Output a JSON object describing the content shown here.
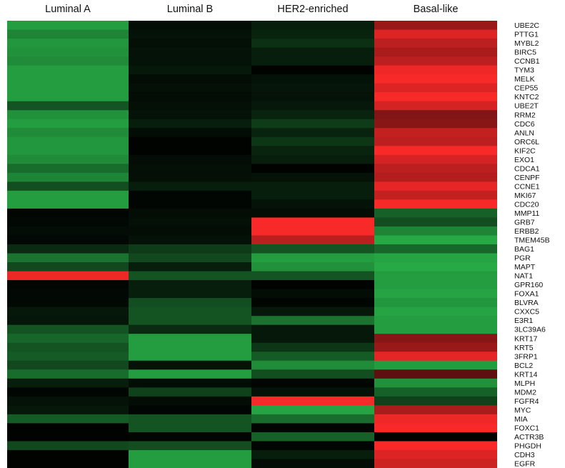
{
  "chart_data": {
    "type": "heatmap",
    "columns": [
      "Luminal A",
      "Luminal B",
      "HER2-enriched",
      "Basal-like"
    ],
    "rows": [
      "UBE2C",
      "PTTG1",
      "MYBL2",
      "BIRC5",
      "CCNB1",
      "TYM3",
      "MELK",
      "CEP55",
      "KNTC2",
      "UBE2T",
      "RRM2",
      "CDC6",
      "ANLN",
      "ORC6L",
      "KIF2C",
      "EXO1",
      "CDCA1",
      "CENPF",
      "CCNE1",
      "MKI67",
      "CDC20",
      "MMP11",
      "GRB7",
      "ERBB2",
      "TMEM45B",
      "BAG1",
      "PGR",
      "MAPT",
      "NAT1",
      "GPR160",
      "FOXA1",
      "BLVRA",
      "CXXC5",
      "E3R1",
      "3LC39A6",
      "KRT17",
      "KRT5",
      "3FRP1",
      "BCL2",
      "KRT14",
      "MLPH",
      "MDM2",
      "FGFR4",
      "MYC",
      "MIA",
      "FOXC1",
      "ACTR3B",
      "PHGDH",
      "CDH3",
      "EGFR"
    ],
    "values": [
      [
        -2.6,
        -0.2,
        -0.5,
        1.8
      ],
      [
        -2.2,
        -0.3,
        -0.6,
        2.6
      ],
      [
        -2.5,
        -0.25,
        -0.8,
        2.2
      ],
      [
        -2.4,
        -0.3,
        -0.5,
        2.0
      ],
      [
        -2.3,
        -0.3,
        -0.5,
        2.2
      ],
      [
        -2.6,
        -0.4,
        -0.05,
        2.8
      ],
      [
        -2.6,
        -0.2,
        -0.3,
        2.9
      ],
      [
        -2.6,
        -0.25,
        -0.35,
        2.6
      ],
      [
        -2.6,
        -0.2,
        -0.3,
        2.9
      ],
      [
        -1.4,
        -0.25,
        -0.4,
        2.5
      ],
      [
        -2.4,
        -0.3,
        -0.6,
        1.5
      ],
      [
        -2.6,
        -0.5,
        -1.0,
        1.6
      ],
      [
        -2.3,
        -0.2,
        -0.6,
        2.3
      ],
      [
        -2.5,
        -0.05,
        -0.9,
        2.2
      ],
      [
        -2.5,
        -0.05,
        -0.6,
        2.9
      ],
      [
        -2.3,
        -0.2,
        -0.5,
        2.5
      ],
      [
        -1.8,
        -0.25,
        -0.05,
        2.2
      ],
      [
        -2.2,
        -0.25,
        -0.3,
        2.1
      ],
      [
        -1.3,
        -0.5,
        -0.5,
        2.7
      ],
      [
        -2.6,
        -0.1,
        -0.5,
        2.3
      ],
      [
        -2.6,
        -0.1,
        -0.3,
        2.9
      ],
      [
        -0.1,
        -0.2,
        -0.2,
        -1.6
      ],
      [
        -0.15,
        -0.25,
        2.9,
        -1.3
      ],
      [
        -0.2,
        -0.2,
        2.9,
        -2.2
      ],
      [
        -0.15,
        -0.3,
        2.2,
        -2.8
      ],
      [
        -0.7,
        -1.0,
        -1.4,
        -1.7
      ],
      [
        -1.9,
        -1.2,
        -2.6,
        -2.7
      ],
      [
        -1.2,
        -0.5,
        -2.4,
        -2.8
      ],
      [
        2.8,
        -1.4,
        -1.4,
        -2.6
      ],
      [
        -0.1,
        -0.5,
        -0.05,
        -2.6
      ],
      [
        -0.15,
        -0.5,
        -0.2,
        -2.7
      ],
      [
        -0.15,
        -1.3,
        -0.1,
        -2.5
      ],
      [
        -0.4,
        -1.4,
        -0.4,
        -2.7
      ],
      [
        -0.35,
        -1.4,
        -1.9,
        -2.6
      ],
      [
        -1.4,
        -0.7,
        -0.4,
        -2.6
      ],
      [
        -1.7,
        -2.6,
        -0.4,
        1.6
      ],
      [
        -1.4,
        -2.6,
        -0.9,
        1.8
      ],
      [
        -1.5,
        -2.6,
        -1.5,
        2.7
      ],
      [
        -1.2,
        -0.3,
        -2.3,
        -2.6
      ],
      [
        -1.8,
        -2.6,
        -1.3,
        1.1
      ],
      [
        -0.5,
        -0.2,
        -0.1,
        -2.4
      ],
      [
        -0.1,
        -1.1,
        -0.3,
        -1.6
      ],
      [
        -0.3,
        -0.2,
        2.9,
        -1.1
      ],
      [
        -0.4,
        -0.1,
        -2.7,
        2.0
      ],
      [
        -1.5,
        -1.4,
        -1.8,
        2.8
      ],
      [
        -0.05,
        -1.4,
        -0.1,
        2.9
      ],
      [
        -0.05,
        -0.1,
        -1.6,
        -0.05
      ],
      [
        -1.2,
        -1.3,
        -0.1,
        2.9
      ],
      [
        -0.05,
        -2.6,
        -0.5,
        2.6
      ],
      [
        -0.05,
        -2.6,
        -0.2,
        2.4
      ]
    ],
    "color_scale": {
      "low": "#2ab54a",
      "mid": "#000000",
      "high": "#ff2a2a",
      "vmin": -3,
      "vmax": 3
    }
  }
}
